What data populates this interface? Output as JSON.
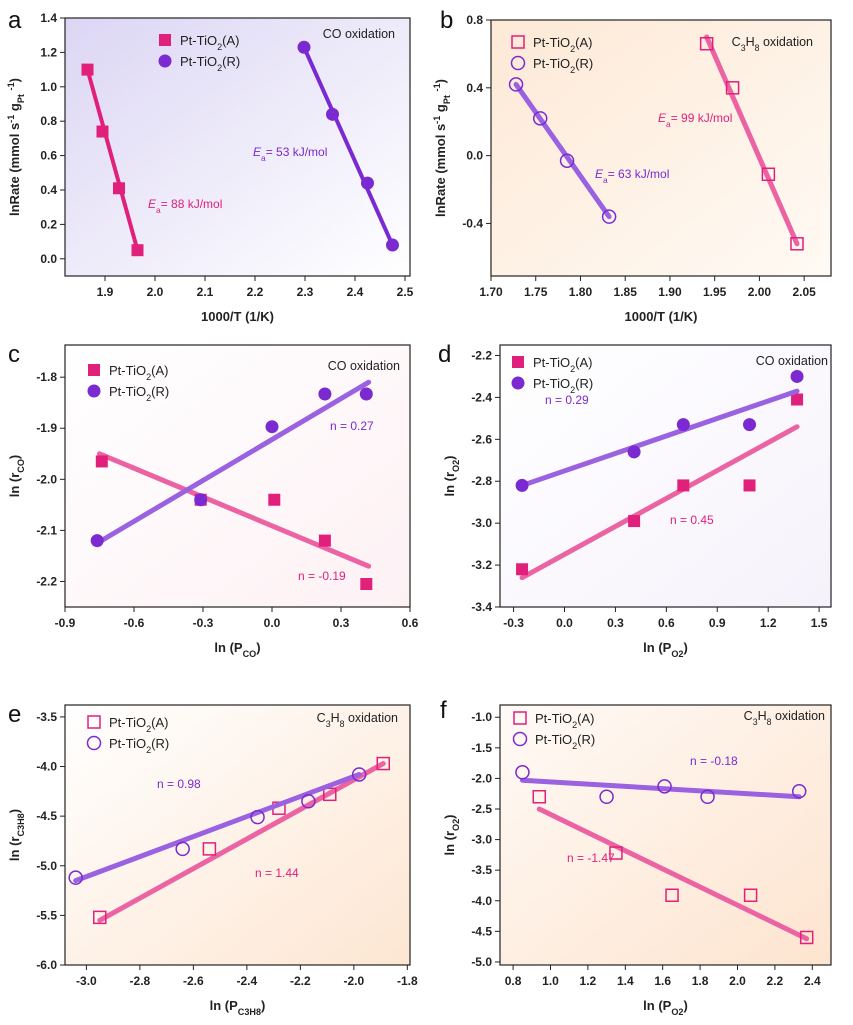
{
  "colors": {
    "A": "#e0207a",
    "R": "#7a2ad0",
    "A_light": "#ec63a3",
    "R_light": "#9a62e0"
  },
  "chart_data": [
    {
      "panel": "a",
      "type": "scatter",
      "title": "CO oxidation",
      "xlabel": [
        [
          "1000/T (1/K)",
          ""
        ]
      ],
      "ylabel": [
        [
          "lnRate (mmol s",
          ""
        ],
        [
          "-1",
          "sup"
        ],
        [
          " g",
          ""
        ],
        [
          "Pt",
          "sub"
        ],
        [
          " ",
          ""
        ],
        [
          "-1",
          "sup"
        ],
        [
          ")",
          ""
        ]
      ],
      "xlim": [
        1.82,
        2.51
      ],
      "ylim": [
        -0.1,
        1.4
      ],
      "xticks": [
        1.9,
        2.0,
        2.1,
        2.2,
        2.3,
        2.4,
        2.5
      ],
      "yticks": [
        0.0,
        0.2,
        0.4,
        0.6,
        0.8,
        1.0,
        1.2,
        1.4
      ],
      "xdec": 1,
      "ydec": 1,
      "filled": true,
      "bg": [
        "#dcd6f4",
        "#ffffff"
      ],
      "series": [
        {
          "key": "A",
          "name": [
            [
              "Pt-TiO",
              ""
            ],
            [
              "2",
              "sub"
            ],
            [
              "(A)",
              ""
            ]
          ],
          "marker": "square",
          "x": [
            1.865,
            1.895,
            1.928,
            1.965
          ],
          "y": [
            1.1,
            0.74,
            0.41,
            0.05
          ],
          "fit": [
            [
              1.865,
              1.1
            ],
            [
              1.965,
              0.05
            ]
          ],
          "annotation": [
            [
              "E",
              "it"
            ],
            [
              "a",
              "sub"
            ],
            [
              "= 88 kJ/mol",
              ""
            ]
          ]
        },
        {
          "key": "R",
          "name": [
            [
              "Pt-TiO",
              ""
            ],
            [
              "2",
              "sub"
            ],
            [
              "(R)",
              ""
            ]
          ],
          "marker": "circle",
          "x": [
            2.298,
            2.355,
            2.425,
            2.475
          ],
          "y": [
            1.23,
            0.84,
            0.44,
            0.08
          ],
          "fit": [
            [
              2.298,
              1.23
            ],
            [
              2.475,
              0.08
            ]
          ],
          "annotation": [
            [
              "E",
              "it"
            ],
            [
              "a",
              "sub"
            ],
            [
              "= 53 kJ/mol",
              ""
            ]
          ]
        }
      ]
    },
    {
      "panel": "b",
      "type": "scatter",
      "title": [
        [
          "C",
          ""
        ],
        [
          "3",
          "sub"
        ],
        [
          "H",
          ""
        ],
        [
          "8",
          "sub"
        ],
        [
          " oxidation",
          ""
        ]
      ],
      "xlabel": [
        [
          "1000/T (1/K)",
          ""
        ]
      ],
      "ylabel": [
        [
          "lnRate (mmol s",
          ""
        ],
        [
          "-1",
          "sup"
        ],
        [
          " g",
          ""
        ],
        [
          "Pt",
          "sub"
        ],
        [
          " ",
          ""
        ],
        [
          "-1",
          "sup"
        ],
        [
          ")",
          ""
        ]
      ],
      "xlim": [
        1.7,
        2.08
      ],
      "ylim": [
        -0.71,
        0.8
      ],
      "xticks": [
        1.7,
        1.75,
        1.8,
        1.85,
        1.9,
        1.95,
        2.0,
        2.05
      ],
      "yticks": [
        -0.4,
        0.0,
        0.4,
        0.8
      ],
      "xdec": 2,
      "ydec": 1,
      "filled": false,
      "bg": [
        "#fde9d6",
        "#fffaf4"
      ],
      "series": [
        {
          "key": "A",
          "name": [
            [
              "Pt-TiO",
              ""
            ],
            [
              "2",
              "sub"
            ],
            [
              "(A)",
              ""
            ]
          ],
          "marker": "square",
          "x": [
            1.941,
            1.97,
            2.01,
            2.042
          ],
          "y": [
            0.66,
            0.4,
            -0.11,
            -0.52
          ],
          "fit": [
            [
              1.941,
              0.7
            ],
            [
              2.042,
              -0.52
            ]
          ],
          "annotation": [
            [
              "E",
              "it"
            ],
            [
              "a",
              "sub"
            ],
            [
              "= 99 kJ/mol",
              ""
            ]
          ]
        },
        {
          "key": "R",
          "name": [
            [
              "Pt-TiO",
              ""
            ],
            [
              "2",
              "sub"
            ],
            [
              "(R)",
              ""
            ]
          ],
          "marker": "circle",
          "x": [
            1.728,
            1.755,
            1.785,
            1.832
          ],
          "y": [
            0.42,
            0.22,
            -0.03,
            -0.36
          ],
          "fit": [
            [
              1.728,
              0.42
            ],
            [
              1.832,
              -0.36
            ]
          ],
          "annotation": [
            [
              "E",
              "it"
            ],
            [
              "a",
              "sub"
            ],
            [
              "= 63 kJ/mol",
              ""
            ]
          ]
        }
      ]
    },
    {
      "panel": "c",
      "type": "scatter",
      "title": "CO oxidation",
      "xlabel": [
        [
          "ln (P",
          ""
        ],
        [
          "CO",
          "sub"
        ],
        [
          ")",
          ""
        ]
      ],
      "ylabel": [
        [
          "ln (r",
          ""
        ],
        [
          "CO",
          "sub"
        ],
        [
          ")",
          ""
        ]
      ],
      "xlim": [
        -0.9,
        0.6
      ],
      "ylim": [
        -2.25,
        -1.737
      ],
      "xticks": [
        -0.9,
        -0.6,
        -0.3,
        0.0,
        0.3,
        0.6
      ],
      "yticks": [
        -2.2,
        -2.1,
        -2.0,
        -1.9,
        -1.8
      ],
      "xdec": 1,
      "ydec": 1,
      "filled": true,
      "bg": [
        "#ffffff",
        "#fdf1f4"
      ],
      "series": [
        {
          "key": "A",
          "name": [
            [
              "Pt-TiO",
              ""
            ],
            [
              "2",
              "sub"
            ],
            [
              "(A)",
              ""
            ]
          ],
          "marker": "square",
          "x": [
            -0.74,
            -0.31,
            0.01,
            0.23,
            0.41
          ],
          "y": [
            -1.965,
            -2.04,
            -2.04,
            -2.12,
            -2.205
          ],
          "fit": [
            [
              -0.75,
              -1.95
            ],
            [
              0.42,
              -2.17
            ]
          ],
          "annotation": [
            [
              "n = -0.19",
              ""
            ]
          ]
        },
        {
          "key": "R",
          "name": [
            [
              "Pt-TiO",
              ""
            ],
            [
              "2",
              "sub"
            ],
            [
              "(R)",
              ""
            ]
          ],
          "marker": "circle",
          "x": [
            -0.76,
            -0.31,
            0.0,
            0.23,
            0.41
          ],
          "y": [
            -2.12,
            -2.04,
            -1.897,
            -1.833,
            -1.833
          ],
          "fit": [
            [
              -0.76,
              -2.125
            ],
            [
              0.42,
              -1.81
            ]
          ],
          "annotation": [
            [
              "n = 0.27",
              ""
            ]
          ]
        }
      ]
    },
    {
      "panel": "d",
      "type": "scatter",
      "title": "CO oxidation",
      "xlabel": [
        [
          "ln (P",
          ""
        ],
        [
          "O2",
          "sub"
        ],
        [
          ")",
          ""
        ]
      ],
      "ylabel": [
        [
          "ln (r",
          ""
        ],
        [
          "O2",
          "sub"
        ],
        [
          ")",
          ""
        ]
      ],
      "xlim": [
        -0.38,
        1.57
      ],
      "ylim": [
        -3.4,
        -2.15
      ],
      "xticks": [
        -0.3,
        0.0,
        0.3,
        0.6,
        0.9,
        1.2,
        1.5
      ],
      "yticks": [
        -3.4,
        -3.2,
        -3.0,
        -2.8,
        -2.6,
        -2.4,
        -2.2
      ],
      "xdec": 1,
      "ydec": 1,
      "filled": true,
      "bg": [
        "#ffffff",
        "#f6f2fb"
      ],
      "series": [
        {
          "key": "A",
          "name": [
            [
              "Pt-TiO",
              ""
            ],
            [
              "2",
              "sub"
            ],
            [
              "(A)",
              ""
            ]
          ],
          "marker": "square",
          "x": [
            -0.25,
            0.41,
            0.7,
            1.09,
            1.37
          ],
          "y": [
            -3.22,
            -2.99,
            -2.82,
            -2.82,
            -2.41
          ],
          "fit": [
            [
              -0.25,
              -3.26
            ],
            [
              1.37,
              -2.54
            ]
          ],
          "annotation": [
            [
              "n = 0.45",
              ""
            ]
          ]
        },
        {
          "key": "R",
          "name": [
            [
              "Pt-TiO",
              ""
            ],
            [
              "2",
              "sub"
            ],
            [
              "(R)",
              ""
            ]
          ],
          "marker": "circle",
          "x": [
            -0.25,
            0.41,
            0.7,
            1.09,
            1.37
          ],
          "y": [
            -2.82,
            -2.66,
            -2.53,
            -2.53,
            -2.3
          ],
          "fit": [
            [
              -0.25,
              -2.82
            ],
            [
              1.37,
              -2.37
            ]
          ],
          "annotation": [
            [
              "n = 0.29",
              ""
            ]
          ]
        }
      ]
    },
    {
      "panel": "e",
      "type": "scatter",
      "title": [
        [
          "C",
          ""
        ],
        [
          "3",
          "sub"
        ],
        [
          "H",
          ""
        ],
        [
          "8",
          "sub"
        ],
        [
          " oxidation",
          ""
        ]
      ],
      "xlabel": [
        [
          "ln (P",
          ""
        ],
        [
          "C3H8",
          "sub"
        ],
        [
          ")",
          ""
        ]
      ],
      "ylabel": [
        [
          "ln (r",
          ""
        ],
        [
          "C3H8",
          "sub"
        ],
        [
          ")",
          ""
        ]
      ],
      "xlim": [
        -3.08,
        -1.79
      ],
      "ylim": [
        -6.0,
        -3.38
      ],
      "xticks": [
        -3.0,
        -2.8,
        -2.6,
        -2.4,
        -2.2,
        -2.0,
        -1.8
      ],
      "yticks": [
        -6.0,
        -5.5,
        -5.0,
        -4.5,
        -4.0,
        -3.5
      ],
      "xdec": 1,
      "ydec": 1,
      "filled": false,
      "bg": [
        "#ffffff",
        "#fde6d2"
      ],
      "series": [
        {
          "key": "A",
          "name": [
            [
              "Pt-TiO",
              ""
            ],
            [
              "2",
              "sub"
            ],
            [
              "(A)",
              ""
            ]
          ],
          "marker": "square",
          "x": [
            -2.95,
            -2.54,
            -2.28,
            -2.09,
            -1.89
          ],
          "y": [
            -5.52,
            -4.83,
            -4.42,
            -4.28,
            -3.97
          ],
          "fit": [
            [
              -2.95,
              -5.55
            ],
            [
              -1.89,
              -3.97
            ]
          ],
          "annotation": [
            [
              "n = 1.44",
              ""
            ]
          ]
        },
        {
          "key": "R",
          "name": [
            [
              "Pt-TiO",
              ""
            ],
            [
              "2",
              "sub"
            ],
            [
              "(R)",
              ""
            ]
          ],
          "marker": "circle",
          "x": [
            -3.04,
            -2.64,
            -2.36,
            -2.17,
            -1.98
          ],
          "y": [
            -5.12,
            -4.83,
            -4.51,
            -4.35,
            -4.08
          ],
          "fit": [
            [
              -3.04,
              -5.15
            ],
            [
              -1.98,
              -4.08
            ]
          ],
          "annotation": [
            [
              "n = 0.98",
              ""
            ]
          ]
        }
      ]
    },
    {
      "panel": "f",
      "type": "scatter",
      "title": [
        [
          "C",
          ""
        ],
        [
          "3",
          "sub"
        ],
        [
          "H",
          ""
        ],
        [
          "8",
          "sub"
        ],
        [
          " oxidation",
          ""
        ]
      ],
      "xlabel": [
        [
          "ln (P",
          ""
        ],
        [
          "O2",
          "sub"
        ],
        [
          ")",
          ""
        ]
      ],
      "ylabel": [
        [
          "ln (r",
          ""
        ],
        [
          "O2",
          "sub"
        ],
        [
          ")",
          ""
        ]
      ],
      "xlim": [
        0.73,
        2.5
      ],
      "ylim": [
        -5.05,
        -0.8
      ],
      "xticks": [
        0.8,
        1.0,
        1.2,
        1.4,
        1.6,
        1.8,
        2.0,
        2.2,
        2.4
      ],
      "yticks": [
        -5.0,
        -4.5,
        -4.0,
        -3.5,
        -3.0,
        -2.5,
        -2.0,
        -1.5,
        -1.0
      ],
      "xdec": 1,
      "ydec": 1,
      "filled": false,
      "bg": [
        "#fffaf6",
        "#fde4cf"
      ],
      "series": [
        {
          "key": "A",
          "name": [
            [
              "Pt-TiO",
              ""
            ],
            [
              "2",
              "sub"
            ],
            [
              "(A)",
              ""
            ]
          ],
          "marker": "square",
          "x": [
            0.94,
            1.35,
            1.65,
            2.07,
            2.37
          ],
          "y": [
            -2.3,
            -3.22,
            -3.91,
            -3.91,
            -4.6
          ],
          "fit": [
            [
              0.94,
              -2.5
            ],
            [
              2.37,
              -4.62
            ]
          ],
          "annotation": [
            [
              "n = -1.47",
              ""
            ]
          ]
        },
        {
          "key": "R",
          "name": [
            [
              "Pt-TiO",
              ""
            ],
            [
              "2",
              "sub"
            ],
            [
              "(R)",
              ""
            ]
          ],
          "marker": "circle",
          "x": [
            0.85,
            1.3,
            1.61,
            1.84,
            2.33
          ],
          "y": [
            -1.9,
            -2.3,
            -2.13,
            -2.3,
            -2.21
          ],
          "fit": [
            [
              0.85,
              -2.03
            ],
            [
              2.33,
              -2.3
            ]
          ],
          "annotation": [
            [
              "n = -0.18",
              ""
            ]
          ]
        }
      ]
    }
  ]
}
